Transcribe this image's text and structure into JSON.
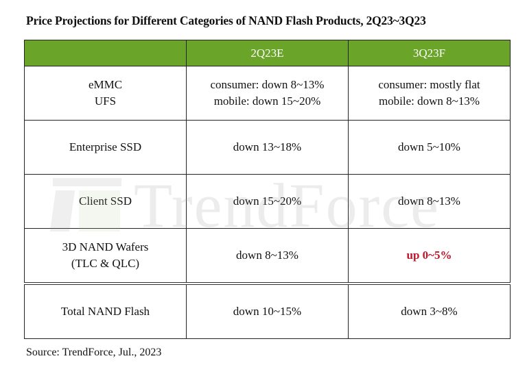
{
  "title": "Price Projections for Different Categories of NAND Flash Products, 2Q23~3Q23",
  "watermark": "TrendForce",
  "colors": {
    "header_bg": "#6aa52a",
    "header_text": "#ffffff",
    "highlight": "#c0142a"
  },
  "chart_data": {
    "type": "table",
    "title": "Price Projections for Different Categories of NAND Flash Products, 2Q23~3Q23",
    "columns": [
      "",
      "2Q23E",
      "3Q23F"
    ],
    "rows": [
      {
        "category": [
          "eMMC",
          "UFS"
        ],
        "q2": [
          "consumer: down 8~13%",
          "mobile: down 15~20%"
        ],
        "q3": [
          "consumer: mostly flat",
          "mobile: down 8~13%"
        ]
      },
      {
        "category": [
          "Enterprise SSD"
        ],
        "q2": [
          "down 13~18%"
        ],
        "q3": [
          "down 5~10%"
        ]
      },
      {
        "category": [
          "Client SSD"
        ],
        "q2": [
          "down 15~20%"
        ],
        "q3": [
          "down 8~13%"
        ]
      },
      {
        "category": [
          "3D NAND Wafers",
          "(TLC & QLC)"
        ],
        "q2": [
          "down 8~13%"
        ],
        "q3": [
          "up 0~5%"
        ],
        "q3_highlight": true
      },
      {
        "category": [
          "Total NAND Flash"
        ],
        "q2": [
          "down 10~15%"
        ],
        "q3": [
          "down 3~8%"
        ]
      }
    ]
  },
  "source": "Source: TrendForce, Jul., 2023"
}
